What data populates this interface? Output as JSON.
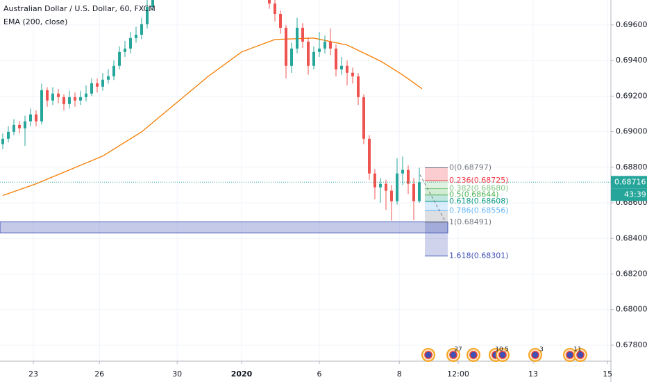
{
  "chart_data": {
    "type": "candlestick",
    "title": "Australian Dollar / U.S. Dollar, 60, FXCM",
    "subtitle": "EMA (200, close)",
    "xlim": [
      -0.5,
      109.5
    ],
    "xticks": [
      {
        "value": 5.5,
        "label": "23"
      },
      {
        "value": 17.4,
        "label": "26"
      },
      {
        "value": 31.4,
        "label": "30"
      },
      {
        "value": 43,
        "label": "2020"
      },
      {
        "value": 57,
        "label": "6"
      },
      {
        "value": 71.4,
        "label": "8"
      },
      {
        "value": 82,
        "label": "12:00"
      },
      {
        "value": 95.5,
        "label": "13"
      },
      {
        "value": 108.9,
        "label": "15"
      }
    ],
    "ylim": [
      0.6771,
      0.6974
    ],
    "yticks": [
      {
        "value": 0.678,
        "label": "0.67800"
      },
      {
        "value": 0.68,
        "label": "0.68000"
      },
      {
        "value": 0.682,
        "label": "0.68200"
      },
      {
        "value": 0.684,
        "label": "0.68400"
      },
      {
        "value": 0.686,
        "label": "0.68600"
      },
      {
        "value": 0.688,
        "label": "0.68800"
      },
      {
        "value": 0.69,
        "label": "0.69000"
      },
      {
        "value": 0.692,
        "label": "0.69200"
      },
      {
        "value": 0.694,
        "label": "0.69400"
      },
      {
        "value": 0.696,
        "label": "0.69600"
      }
    ],
    "grid": true,
    "up_color": "#26a69a",
    "down_color": "#ef5350",
    "open": [
      0.6893,
      0.6896,
      0.68999,
      0.69038,
      0.69019,
      0.69058,
      0.69097,
      0.69058,
      0.69233,
      0.69175,
      0.69214,
      0.69194,
      0.69155,
      0.69194,
      0.69175,
      0.69194,
      0.69214,
      0.69272,
      0.69253,
      0.69292,
      0.69311,
      0.6937,
      0.69448,
      0.69467,
      0.69526,
      0.69545,
      0.69604,
      0.69701,
      null,
      null,
      null,
      null,
      null,
      null,
      null,
      null,
      null,
      null,
      null,
      null,
      null,
      null,
      null,
      null,
      null,
      null,
      null,
      null,
      0.6979,
      0.6972,
      0.69662,
      0.69584,
      0.6937,
      0.69467,
      0.69584,
      0.69506,
      0.6937,
      0.69448,
      0.69467,
      0.69506,
      0.69467,
      0.6935,
      0.6937,
      0.69331,
      0.69311,
      0.69194,
      0.6896,
      0.68765,
      0.68687,
      0.68707,
      0.68668,
      0.68609,
      0.68765,
      0.68785,
      0.68707,
      0.68609
    ],
    "high": [
      0.6899,
      0.6903,
      0.6907,
      0.6906,
      0.6909,
      0.6913,
      0.6912,
      0.6927,
      0.6925,
      0.6925,
      0.6924,
      0.6921,
      0.6923,
      0.6922,
      0.6923,
      0.6926,
      0.693,
      0.693,
      0.6933,
      0.6935,
      0.694,
      0.6948,
      0.6951,
      0.6956,
      0.6959,
      0.6964,
      0.6974,
      0.6982,
      null,
      null,
      null,
      null,
      null,
      null,
      null,
      null,
      null,
      null,
      null,
      null,
      null,
      null,
      null,
      null,
      null,
      null,
      null,
      null,
      0.698,
      0.6974,
      0.6968,
      0.696,
      0.695,
      0.6964,
      0.6961,
      0.6953,
      0.6948,
      0.6956,
      0.6954,
      0.6958,
      0.6949,
      0.6942,
      0.694,
      0.6936,
      0.6933,
      0.6921,
      0.6898,
      0.6879,
      0.6874,
      0.6873,
      0.687,
      0.6885,
      0.6886,
      0.6881,
      0.6874,
      0.68797
    ],
    "low": [
      0.689,
      0.6894,
      0.6898,
      0.6899,
      0.6892,
      0.6903,
      0.6903,
      0.6904,
      0.6914,
      0.6915,
      0.6916,
      0.6912,
      0.6913,
      0.6914,
      0.6915,
      0.6917,
      0.692,
      0.6922,
      0.6923,
      0.6927,
      0.6929,
      0.6935,
      0.6942,
      0.6944,
      0.695,
      0.6952,
      0.6958,
      0.6968,
      null,
      null,
      null,
      null,
      null,
      null,
      null,
      null,
      null,
      null,
      null,
      null,
      null,
      null,
      null,
      null,
      null,
      null,
      null,
      null,
      0.6969,
      0.6962,
      0.6955,
      0.693,
      0.6933,
      0.6944,
      0.6947,
      0.6932,
      0.6935,
      0.6942,
      0.6944,
      0.6943,
      0.6931,
      0.6932,
      0.6926,
      0.6927,
      0.6915,
      0.6893,
      0.6873,
      0.6862,
      0.686,
      0.6856,
      0.685,
      0.6859,
      0.687,
      0.6865,
      0.68502,
      0.686
    ],
    "close": [
      0.6896,
      0.68999,
      0.69038,
      0.69019,
      0.69058,
      0.69097,
      0.69058,
      0.69233,
      0.69175,
      0.69214,
      0.69194,
      0.69155,
      0.69194,
      0.69175,
      0.69194,
      0.69214,
      0.69272,
      0.69253,
      0.69292,
      0.69311,
      0.6937,
      0.69448,
      0.69467,
      0.69526,
      0.69545,
      0.69604,
      0.69701,
      0.69779,
      null,
      null,
      null,
      null,
      null,
      null,
      null,
      null,
      null,
      null,
      null,
      null,
      null,
      null,
      null,
      null,
      null,
      null,
      null,
      null,
      0.6972,
      0.69662,
      0.69584,
      0.6937,
      0.69467,
      0.69584,
      0.69506,
      0.6937,
      0.69448,
      0.69467,
      0.69506,
      0.69467,
      0.6935,
      0.6937,
      0.69331,
      0.69311,
      0.69194,
      0.6896,
      0.68765,
      0.68687,
      0.68707,
      0.68668,
      0.68609,
      0.68765,
      0.68785,
      0.68707,
      0.68609,
      0.68716
    ],
    "ema": {
      "color": "#f57c00",
      "x": [
        0,
        6,
        12,
        18,
        25,
        31,
        37,
        43,
        49,
        56,
        62,
        68,
        72,
        75.5
      ],
      "values": [
        0.68641,
        0.68707,
        0.68785,
        0.68863,
        0.68999,
        0.69155,
        0.69311,
        0.69448,
        0.69518,
        0.69526,
        0.69487,
        0.69397,
        0.69319,
        0.69241
      ]
    },
    "zone": {
      "color": "#3f51b5",
      "low": 0.68431,
      "high": 0.68493
    },
    "fib": [
      {
        "value": 0.68797,
        "label": "0(0.68797)",
        "color": "#787b86"
      },
      {
        "value": 0.68725,
        "label": "0.236(0.68725)",
        "color": "#f23645"
      },
      {
        "value": 0.6868,
        "label": "0.382(0.68680)",
        "color": "#81c784"
      },
      {
        "value": 0.68644,
        "label": "0.5(0.68644)",
        "color": "#4caf50"
      },
      {
        "value": 0.68608,
        "label": "0.618(0.68608)",
        "color": "#089981"
      },
      {
        "value": 0.68556,
        "label": "0.786(0.68556)",
        "color": "#64b5f6"
      },
      {
        "value": 0.68491,
        "label": "1(0.68491)",
        "color": "#787b86"
      },
      {
        "value": 0.68301,
        "label": "1.618(0.68301)",
        "color": "#3f51b5"
      }
    ],
    "last_price": {
      "value": 0.68716,
      "label": "0.68716",
      "color": "#26a69a"
    },
    "countdown": "43:39",
    "events": [
      "27",
      "10",
      "5",
      "3",
      "11"
    ]
  }
}
